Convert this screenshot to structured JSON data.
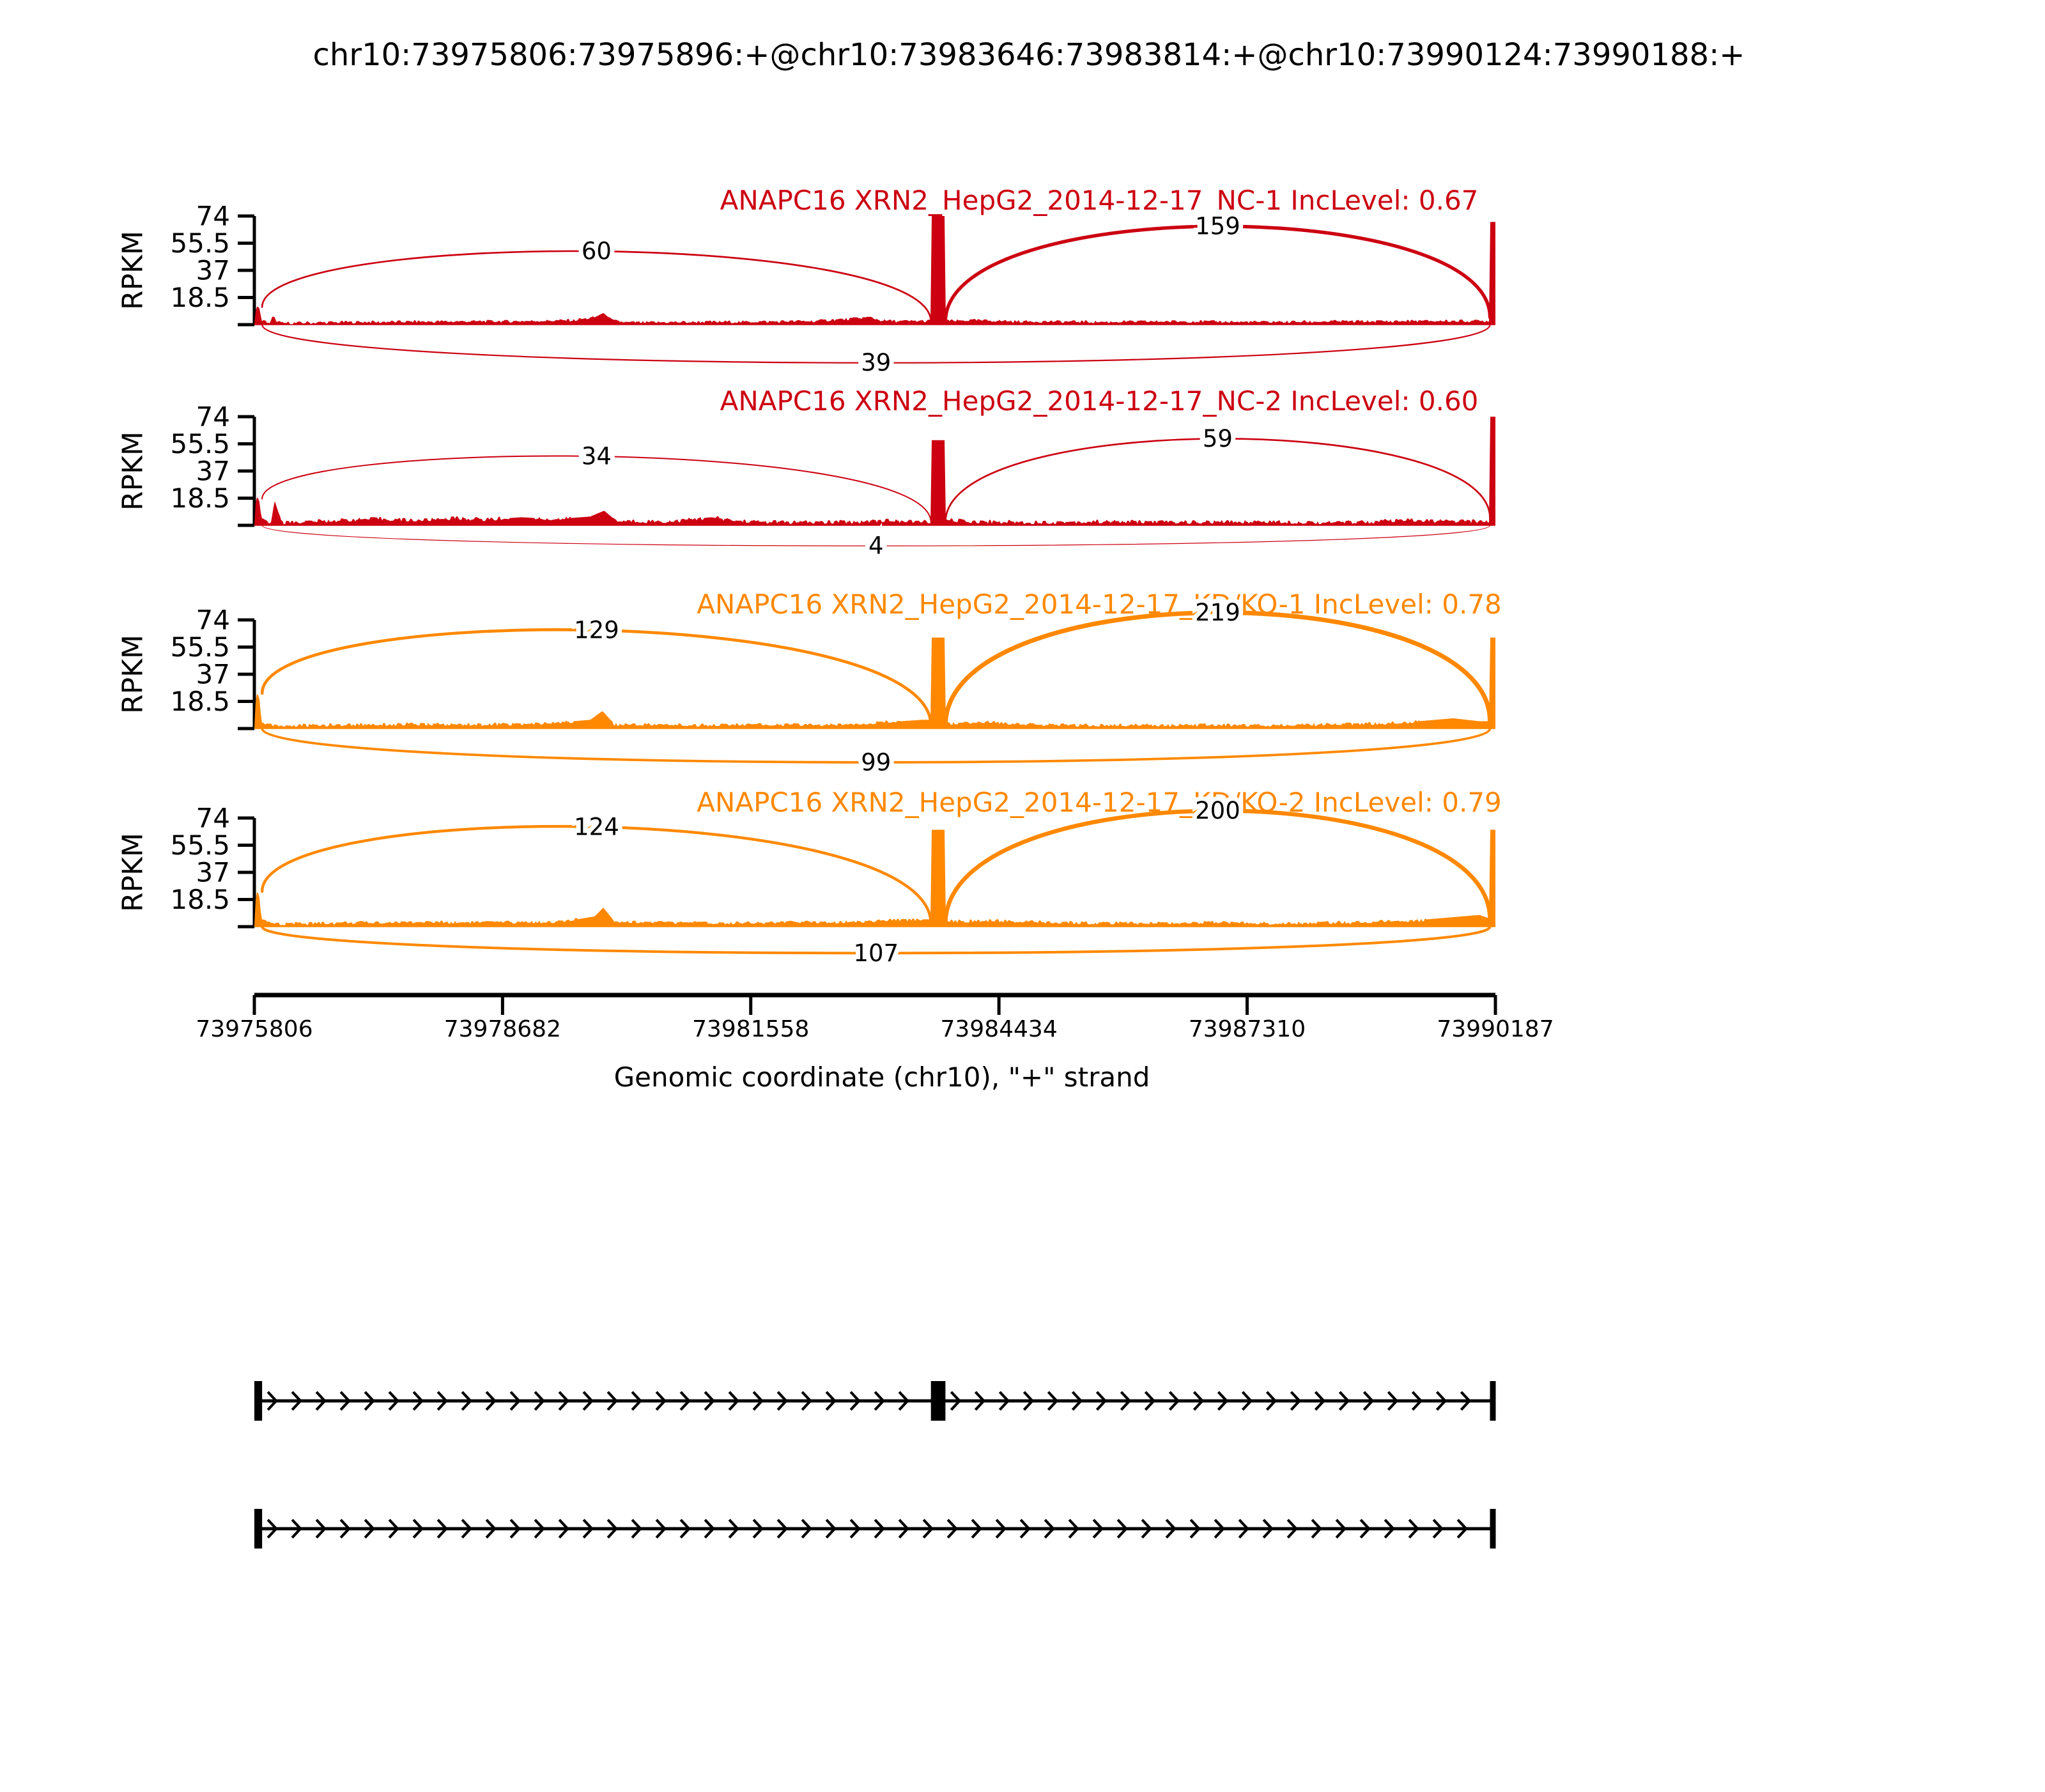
{
  "title": "chr10:73975806:73975896:+@chr10:73983646:73983814:+@chr10:73990124:73990188:+",
  "colors": {
    "group1_red": "#CC0011",
    "group2_orange": "#FF8800",
    "axis": "#000000",
    "background": "#FFFFFF",
    "label_text": "#000000"
  },
  "chart_data": {
    "type": "sashimi",
    "title": "chr10:73975806:73975896:+@chr10:73983646:73983814:+@chr10:73990124:73990188:+",
    "xlabel": "Genomic coordinate (chr10), \"+\" strand",
    "ylabel": "RPKM",
    "chromosome": "chr10",
    "strand": "+",
    "x_domain": [
      73975806,
      73990187
    ],
    "x_ticks": [
      73975806,
      73978682,
      73981558,
      73984434,
      73987310,
      73990187
    ],
    "y_max": 74,
    "y_ticks": [
      18.5,
      37,
      55.5,
      74
    ],
    "exon_regions": [
      [
        73975806,
        73975896
      ],
      [
        73983646,
        73983814
      ],
      [
        73990124,
        73990188
      ]
    ],
    "tracks": [
      {
        "label": "ANAPC16 XRN2_HepG2_2014-12-17_NC-1 IncLevel: 0.67",
        "inc_level": 0.67,
        "color": "#CC0011",
        "noise_rpkm": 1.9,
        "junctions": [
          {
            "from": 73975896,
            "to": 73983646,
            "reads": 60,
            "side": "top",
            "apex": 50,
            "h1": 12,
            "h2": 2
          },
          {
            "from": 73983814,
            "to": 73990124,
            "reads": 159,
            "side": "top",
            "apex": 67,
            "h1": 2,
            "h2": 5
          },
          {
            "from": 73975896,
            "to": 73990124,
            "reads": 39,
            "side": "bottom",
            "apex": 26
          }
        ],
        "coverage": [
          [
            73975806,
            0
          ],
          [
            73975820,
            9
          ],
          [
            73975840,
            13
          ],
          [
            73975865,
            11
          ],
          [
            73975890,
            3
          ],
          [
            73975990,
            1
          ],
          [
            73976020,
            6
          ],
          [
            73976060,
            3
          ],
          [
            73976120,
            1
          ],
          [
            73976600,
            1.6
          ],
          [
            73977300,
            1.9
          ],
          [
            73978100,
            2.2
          ],
          [
            73978900,
            2.4
          ],
          [
            73979500,
            3
          ],
          [
            73979750,
            5
          ],
          [
            73979850,
            8
          ],
          [
            73979950,
            3
          ],
          [
            73980100,
            1.5
          ],
          [
            73980700,
            1.7
          ],
          [
            73981500,
            2
          ],
          [
            73982300,
            2.5
          ],
          [
            73982950,
            5
          ],
          [
            73983060,
            3
          ],
          [
            73983250,
            2.3
          ],
          [
            73983500,
            2.6
          ],
          [
            73983645,
            2.6
          ],
          [
            73983646,
            74
          ],
          [
            73983814,
            74
          ],
          [
            73983815,
            2.4
          ],
          [
            73984100,
            3
          ],
          [
            73984700,
            2.3
          ],
          [
            73985600,
            1.9
          ],
          [
            73986500,
            2.3
          ],
          [
            73987400,
            1.8
          ],
          [
            73988300,
            2.2
          ],
          [
            73989100,
            2.4
          ],
          [
            73989900,
            2.6
          ],
          [
            73990123,
            2.6
          ],
          [
            73990124,
            70
          ],
          [
            73990187,
            70
          ]
        ]
      },
      {
        "label": "ANAPC16 XRN2_HepG2_2014-12-17_NC-2 IncLevel: 0.60",
        "inc_level": 0.6,
        "color": "#CC0011",
        "noise_rpkm": 2.6,
        "junctions": [
          {
            "from": 73975896,
            "to": 73983646,
            "reads": 34,
            "side": "top",
            "apex": 47,
            "h1": 18,
            "h2": 2
          },
          {
            "from": 73983814,
            "to": 73990124,
            "reads": 59,
            "side": "top",
            "apex": 59,
            "h1": 2,
            "h2": 5
          },
          {
            "from": 73975896,
            "to": 73990124,
            "reads": 4,
            "side": "bottom",
            "apex": 14
          }
        ],
        "coverage": [
          [
            73975806,
            0
          ],
          [
            73975820,
            15
          ],
          [
            73975840,
            20
          ],
          [
            73975865,
            16
          ],
          [
            73975890,
            4
          ],
          [
            73976000,
            2
          ],
          [
            73976040,
            17
          ],
          [
            73976090,
            8
          ],
          [
            73976140,
            2
          ],
          [
            73976700,
            3.2
          ],
          [
            73977200,
            4.5
          ],
          [
            73977700,
            3.4
          ],
          [
            73978100,
            5
          ],
          [
            73978500,
            4
          ],
          [
            73978900,
            5.5
          ],
          [
            73979300,
            4.2
          ],
          [
            73979700,
            6
          ],
          [
            73979860,
            10
          ],
          [
            73980000,
            3
          ],
          [
            73980600,
            2.6
          ],
          [
            73981100,
            5.5
          ],
          [
            73981400,
            3
          ],
          [
            73982100,
            2
          ],
          [
            73982700,
            2.4
          ],
          [
            73983100,
            3.4
          ],
          [
            73983400,
            2.6
          ],
          [
            73983645,
            2.6
          ],
          [
            73983646,
            58
          ],
          [
            73983814,
            58
          ],
          [
            73983815,
            3.6
          ],
          [
            73984200,
            2.6
          ],
          [
            73984900,
            2.1
          ],
          [
            73985700,
            2.6
          ],
          [
            73986600,
            2.2
          ],
          [
            73987500,
            2.6
          ],
          [
            73988400,
            2
          ],
          [
            73989200,
            3.4
          ],
          [
            73989700,
            2.8
          ],
          [
            73990123,
            2.8
          ],
          [
            73990124,
            74
          ],
          [
            73990187,
            74
          ]
        ]
      },
      {
        "label": "ANAPC16 XRN2_HepG2_2014-12-17_KD/KO-1 IncLevel: 0.78",
        "inc_level": 0.78,
        "color": "#FF8800",
        "noise_rpkm": 2.2,
        "junctions": [
          {
            "from": 73975896,
            "to": 73983646,
            "reads": 129,
            "side": "top",
            "apex": 67,
            "h1": 24,
            "h2": 2
          },
          {
            "from": 73983814,
            "to": 73990124,
            "reads": 219,
            "side": "top",
            "apex": 79,
            "h1": 2,
            "h2": 5
          },
          {
            "from": 73975896,
            "to": 73990124,
            "reads": 99,
            "side": "bottom",
            "apex": 23
          }
        ],
        "coverage": [
          [
            73975806,
            0
          ],
          [
            73975820,
            18
          ],
          [
            73975840,
            25
          ],
          [
            73975865,
            20
          ],
          [
            73975890,
            4
          ],
          [
            73976100,
            2
          ],
          [
            73976800,
            2.6
          ],
          [
            73977600,
            3
          ],
          [
            73978400,
            2.8
          ],
          [
            73979200,
            3.4
          ],
          [
            73979700,
            6
          ],
          [
            73979840,
            12
          ],
          [
            73979980,
            3
          ],
          [
            73980900,
            2.4
          ],
          [
            73981700,
            2.8
          ],
          [
            73982500,
            2.6
          ],
          [
            73983000,
            4
          ],
          [
            73983300,
            5
          ],
          [
            73983550,
            6
          ],
          [
            73983645,
            6
          ],
          [
            73983646,
            62
          ],
          [
            73983814,
            62
          ],
          [
            73983815,
            3.4
          ],
          [
            73984300,
            4.5
          ],
          [
            73984900,
            2.6
          ],
          [
            73985700,
            2.2
          ],
          [
            73986600,
            2.6
          ],
          [
            73987500,
            2.3
          ],
          [
            73988300,
            3
          ],
          [
            73988900,
            3.6
          ],
          [
            73989300,
            5
          ],
          [
            73989700,
            7
          ],
          [
            73990000,
            5
          ],
          [
            73990123,
            5
          ],
          [
            73990124,
            62
          ],
          [
            73990187,
            62
          ]
        ]
      },
      {
        "label": "ANAPC16 XRN2_HepG2_2014-12-17_KD/KO-2 IncLevel: 0.79",
        "inc_level": 0.79,
        "color": "#FF8800",
        "noise_rpkm": 2.2,
        "junctions": [
          {
            "from": 73975896,
            "to": 73983646,
            "reads": 124,
            "side": "top",
            "apex": 68,
            "h1": 24,
            "h2": 2
          },
          {
            "from": 73983814,
            "to": 73990124,
            "reads": 200,
            "side": "top",
            "apex": 79,
            "h1": 2,
            "h2": 5
          },
          {
            "from": 73975896,
            "to": 73990124,
            "reads": 107,
            "side": "bottom",
            "apex": 18
          }
        ],
        "coverage": [
          [
            73975806,
            0
          ],
          [
            73975820,
            18
          ],
          [
            73975840,
            25
          ],
          [
            73975865,
            20
          ],
          [
            73975890,
            4
          ],
          [
            73976100,
            2
          ],
          [
            73976900,
            2.8
          ],
          [
            73977800,
            3.2
          ],
          [
            73978700,
            3
          ],
          [
            73979400,
            3.6
          ],
          [
            73979750,
            7
          ],
          [
            73979850,
            13
          ],
          [
            73979980,
            3.5
          ],
          [
            73981000,
            2.6
          ],
          [
            73981900,
            3
          ],
          [
            73982700,
            3.4
          ],
          [
            73983200,
            4.4
          ],
          [
            73983550,
            5
          ],
          [
            73983645,
            5
          ],
          [
            73983646,
            66
          ],
          [
            73983814,
            66
          ],
          [
            73983815,
            3.6
          ],
          [
            73984400,
            4
          ],
          [
            73985100,
            2.8
          ],
          [
            73986000,
            2.4
          ],
          [
            73986900,
            2.8
          ],
          [
            73987800,
            2.4
          ],
          [
            73988600,
            3.2
          ],
          [
            73989200,
            4
          ],
          [
            73989700,
            6.5
          ],
          [
            73990000,
            8
          ],
          [
            73990100,
            6
          ],
          [
            73990123,
            6
          ],
          [
            73990124,
            66
          ],
          [
            73990187,
            66
          ]
        ]
      }
    ],
    "transcripts": [
      {
        "strand": "+",
        "exons": [
          [
            73975806,
            73975896
          ],
          [
            73983646,
            73983814
          ],
          [
            73990124,
            73990188
          ]
        ]
      },
      {
        "strand": "+",
        "exons": [
          [
            73975806,
            73975896
          ],
          [
            73990124,
            73990188
          ]
        ]
      }
    ]
  }
}
